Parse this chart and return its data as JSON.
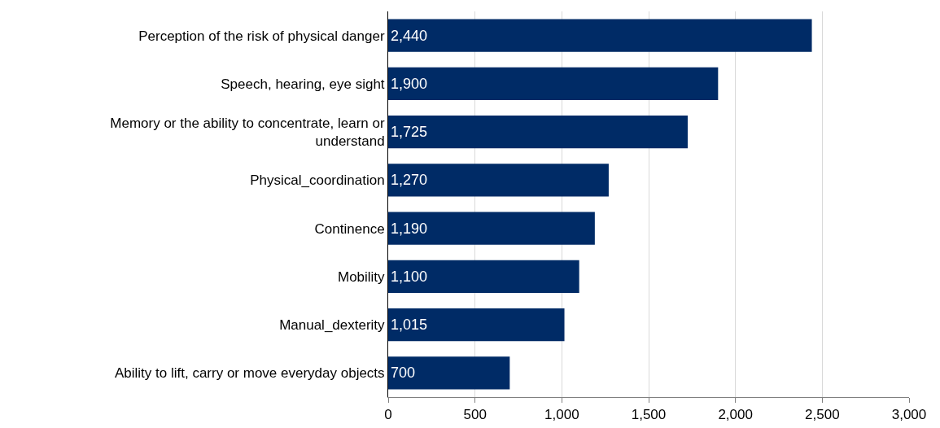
{
  "chart_data": {
    "type": "bar",
    "orientation": "horizontal",
    "categories": [
      "Perception of the risk of physical danger",
      "Speech, hearing, eye sight",
      "Memory or the ability to concentrate, learn or understand",
      "Physical_coordination",
      "Continence",
      "Mobility",
      "Manual_dexterity",
      "Ability to lift, carry or move everyday objects"
    ],
    "values": [
      2440,
      1900,
      1725,
      1270,
      1190,
      1100,
      1015,
      700
    ],
    "value_labels": [
      "2,440",
      "1,900",
      "1,725",
      "1,270",
      "1,190",
      "1,100",
      "1,015",
      "700"
    ],
    "color": "#002b66",
    "xlim": [
      0,
      3000
    ],
    "xticks": [
      0,
      500,
      {
        "value": 1000,
        "label": "1,000"
      },
      {
        "value": 1500,
        "label": "1,500"
      },
      {
        "value": 2000,
        "label": "2,000"
      },
      {
        "value": 2500,
        "label": "2,500"
      },
      {
        "value": 3000,
        "label": "3,000"
      }
    ],
    "grid": "x"
  }
}
